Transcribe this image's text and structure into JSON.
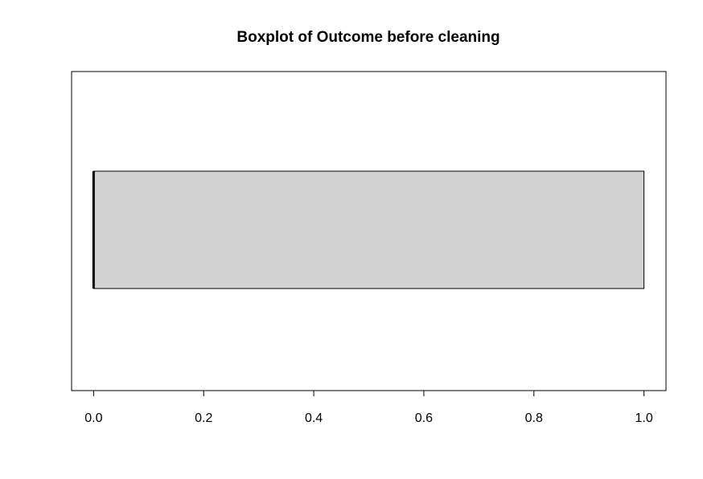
{
  "chart_data": {
    "type": "boxplot",
    "orientation": "horizontal",
    "title": "Boxplot of Outcome before cleaning",
    "xlabel": "",
    "ylabel": "",
    "xlim": [
      -0.04,
      1.04
    ],
    "xticks": [
      0.0,
      0.2,
      0.4,
      0.6,
      0.8,
      1.0
    ],
    "xtick_labels": [
      "0.0",
      "0.2",
      "0.4",
      "0.6",
      "0.8",
      "1.0"
    ],
    "box": {
      "min": 0,
      "q1": 0,
      "median": 0,
      "q3": 1,
      "max": 1
    },
    "outliers": [],
    "grid": false,
    "box_fill": "#d3d3d3",
    "line_color": "#000000"
  }
}
